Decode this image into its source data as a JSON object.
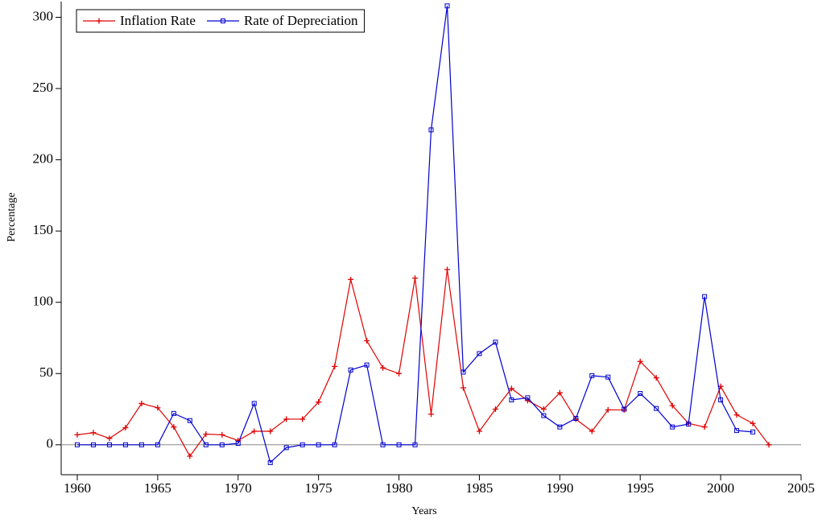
{
  "chart_data": {
    "type": "line",
    "xlabel": "Years",
    "ylabel": "Percentage",
    "x": [
      1960,
      1961,
      1962,
      1963,
      1964,
      1965,
      1966,
      1967,
      1968,
      1969,
      1970,
      1971,
      1972,
      1973,
      1974,
      1975,
      1976,
      1977,
      1978,
      1979,
      1980,
      1981,
      1982,
      1983,
      1984,
      1985,
      1986,
      1987,
      1988,
      1989,
      1990,
      1991,
      1992,
      1993,
      1994,
      1995,
      1996,
      1997,
      1998,
      1999,
      2000,
      2001,
      2002,
      2003
    ],
    "series": [
      {
        "name": "Inflation Rate",
        "color": "#e00000",
        "marker": "plus",
        "values": [
          7,
          8.5,
          4.5,
          12,
          29,
          26,
          12.5,
          -8,
          7.5,
          7,
          3,
          9.5,
          9.5,
          18,
          18,
          30,
          55,
          116,
          73,
          54,
          50,
          117,
          21.5,
          123,
          40,
          9.5,
          25,
          39.5,
          31,
          25,
          36.5,
          18,
          9.5,
          24.5,
          24.5,
          58.5,
          47,
          27.5,
          15,
          12.5,
          41,
          21,
          15,
          0
        ]
      },
      {
        "name": "Rate of Depreciation",
        "color": "#0000d0",
        "marker": "square",
        "values": [
          0,
          0,
          0,
          0,
          0,
          0,
          22,
          17,
          0,
          0,
          1,
          29,
          -12.5,
          -2,
          0,
          0,
          0,
          52.5,
          56,
          0,
          0,
          0,
          221,
          308,
          51,
          64,
          72,
          31.5,
          33,
          20.5,
          12.5,
          18.5,
          48.5,
          47.5,
          25,
          36,
          25.5,
          12.5,
          14.5,
          104,
          31.5,
          10,
          9,
          null
        ]
      }
    ],
    "xlim": [
      1959,
      2005
    ],
    "xticks": [
      1960,
      1965,
      1970,
      1975,
      1980,
      1985,
      1990,
      1995,
      2000,
      2005
    ],
    "ylim": [
      -21,
      311
    ],
    "yticks": [
      0,
      50,
      100,
      150,
      200,
      250,
      300
    ],
    "legend": "upper left",
    "grid": false
  }
}
